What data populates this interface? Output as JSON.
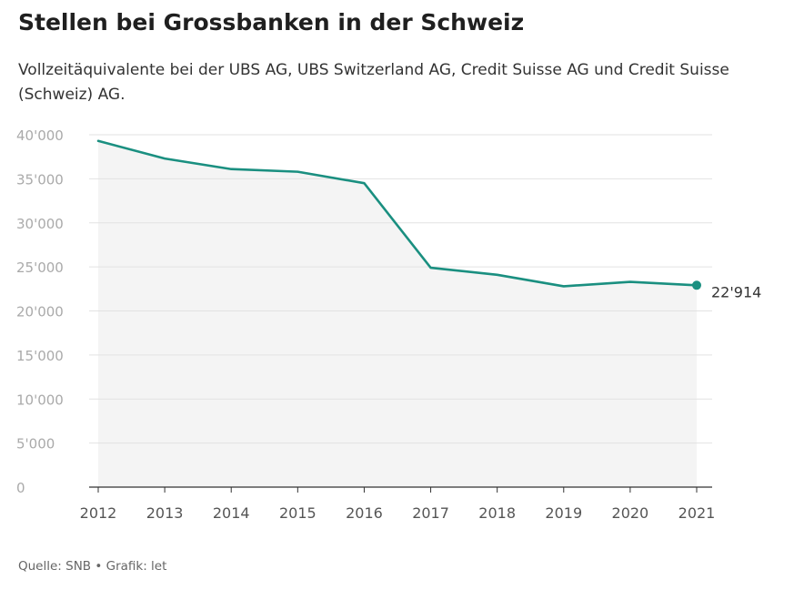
{
  "chart_data": {
    "type": "line",
    "title": "Stellen bei Grossbanken in der Schweiz",
    "subtitle": "Vollzeitäquivalente bei der UBS AG, UBS Switzerland AG, Credit Suisse AG und Credit Suisse (Schweiz) AG.",
    "xlabel": "",
    "ylabel": "",
    "ylim": [
      0,
      40000
    ],
    "yticks": [
      0,
      5000,
      10000,
      15000,
      20000,
      25000,
      30000,
      35000,
      40000
    ],
    "ytick_labels": [
      "0",
      "5'000",
      "10'000",
      "15'000",
      "20'000",
      "25'000",
      "30'000",
      "35'000",
      "40'000"
    ],
    "x": [
      "2012",
      "2013",
      "2014",
      "2015",
      "2016",
      "2017",
      "2018",
      "2019",
      "2020",
      "2021"
    ],
    "series": [
      {
        "name": "Vollzeitäquivalente",
        "values": [
          39300,
          37300,
          36100,
          35800,
          34500,
          24900,
          24100,
          22800,
          23300,
          22914
        ],
        "color": "#1a8f80"
      }
    ],
    "end_label": "22'914",
    "grid": true,
    "fill_color": "#f4f4f4"
  },
  "footer": {
    "source": "Quelle: SNB • Grafik: let"
  }
}
